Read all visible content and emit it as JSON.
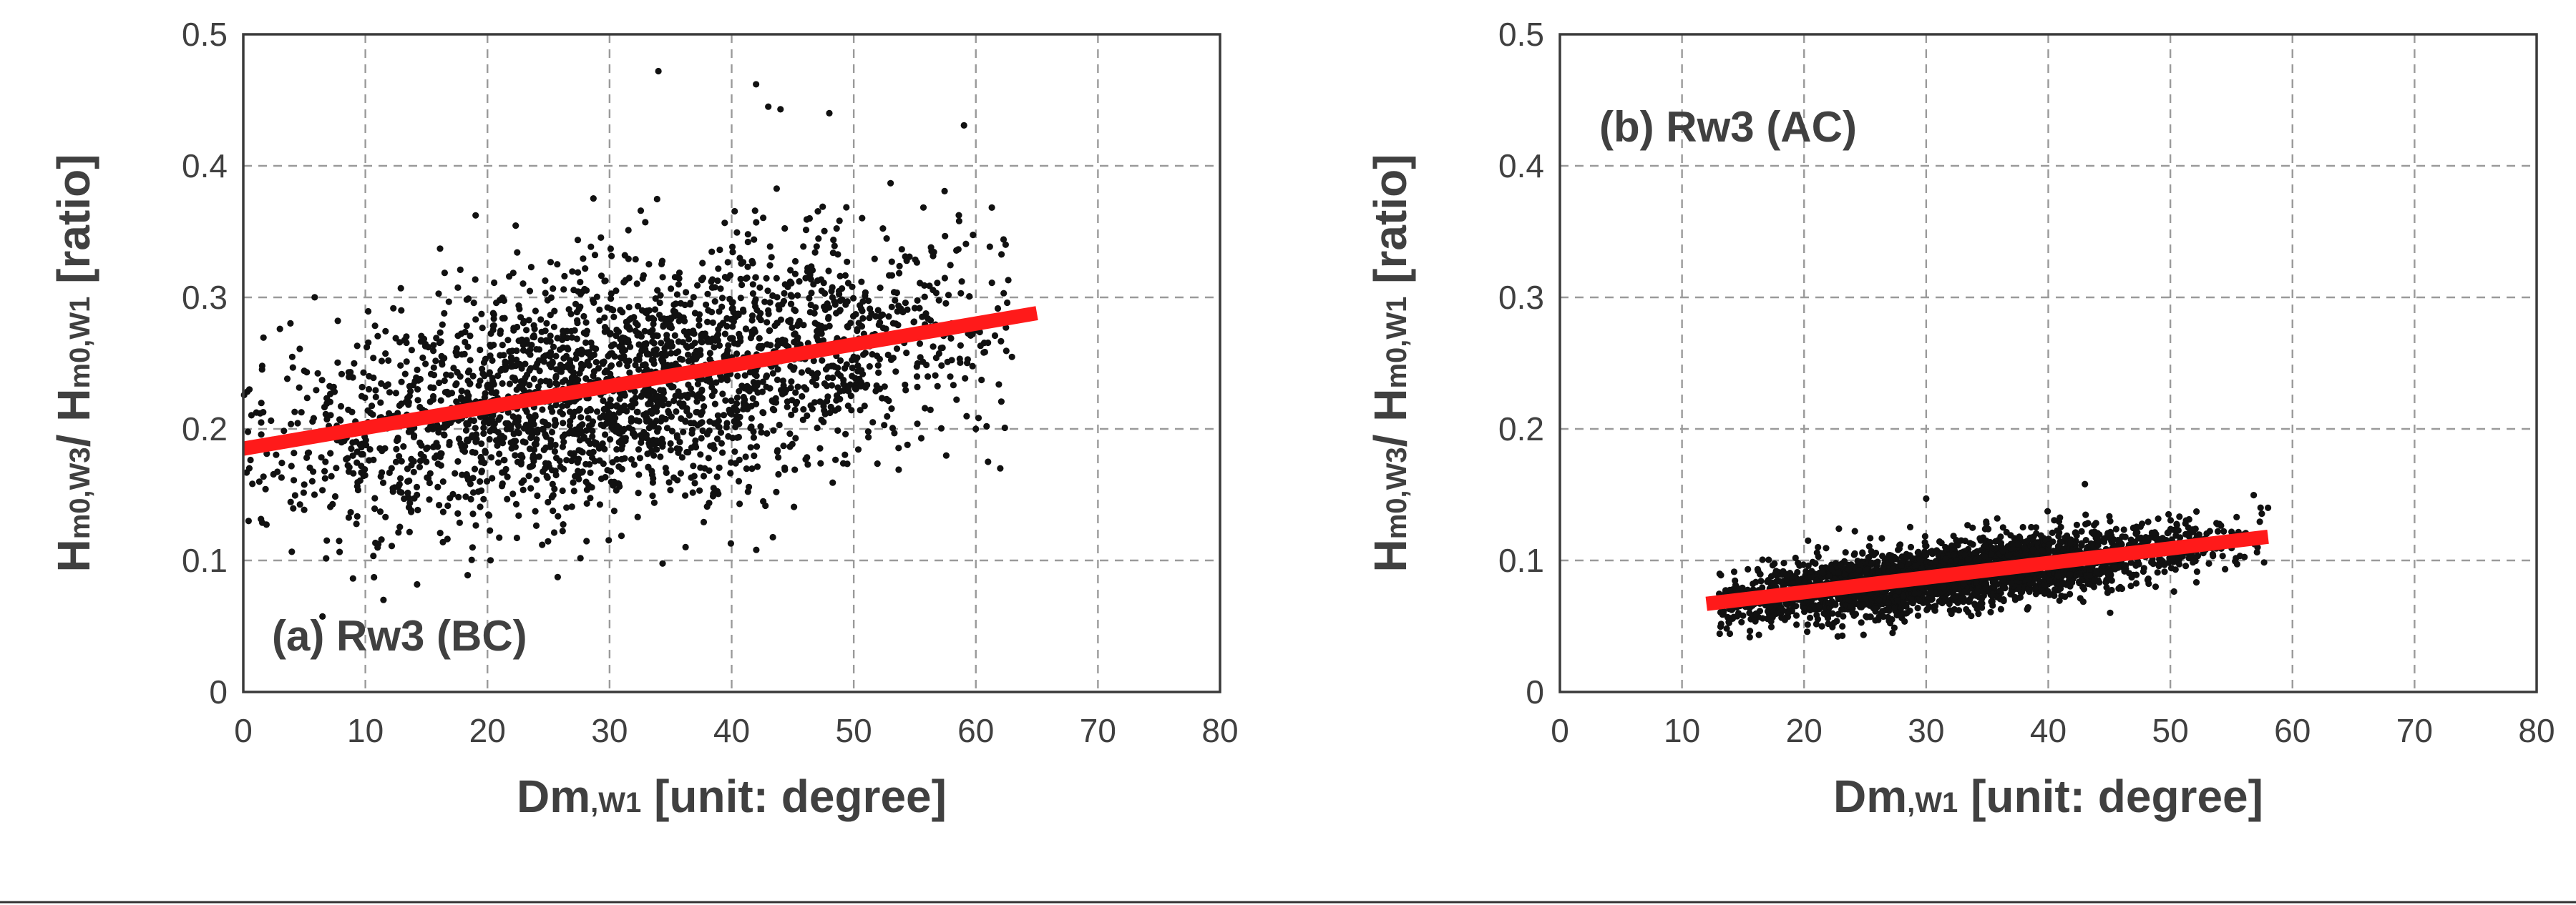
{
  "chart_data": [
    {
      "type": "scatter",
      "panel": "a",
      "annotation": "(a) Rw3 (BC)",
      "xlabel": {
        "main": "Dm",
        "sub": ",W1",
        "rest": " [unit: degree]"
      },
      "ylabel": {
        "p1": "H",
        "s1": "m0,W3",
        "p2": "/ H",
        "s2": "m0,W1",
        "p3": " [ratio]"
      },
      "xlim": [
        0,
        80
      ],
      "ylim": [
        0,
        0.5
      ],
      "xticks": [
        0,
        10,
        20,
        30,
        40,
        50,
        60,
        70,
        80
      ],
      "yticks": [
        0,
        0.1,
        0.2,
        0.3,
        0.4,
        0.5
      ],
      "ytick_labels": [
        "0",
        "0.1",
        "0.2",
        "0.3",
        "0.4",
        "0.5"
      ],
      "grid": true,
      "trend_line": {
        "x": [
          0,
          65
        ],
        "y": [
          0.185,
          0.288
        ]
      },
      "cloud": {
        "x_range": [
          0,
          63
        ],
        "x_center": 32,
        "y_center": 0.23,
        "y_spread": 0.045,
        "n": 2600
      },
      "outliers": [
        [
          34,
          0.472
        ],
        [
          42,
          0.462
        ],
        [
          43,
          0.445
        ],
        [
          44,
          0.443
        ],
        [
          48,
          0.44
        ],
        [
          0.5,
          0.23
        ],
        [
          3,
          0.276
        ],
        [
          61,
          0.175
        ],
        [
          62,
          0.17
        ],
        [
          60,
          0.2
        ]
      ]
    },
    {
      "type": "scatter",
      "panel": "b",
      "annotation": "(b) Rw3 (AC)",
      "xlabel": {
        "main": "Dm",
        "sub": ",W1",
        "rest": " [unit: degree]"
      },
      "ylabel": {
        "p1": "H",
        "s1": "m0,W3",
        "p2": "/ H",
        "s2": "m0,W1",
        "p3": " [ratio]"
      },
      "xlim": [
        0,
        80
      ],
      "ylim": [
        0,
        0.5
      ],
      "xticks": [
        0,
        10,
        20,
        30,
        40,
        50,
        60,
        70,
        80
      ],
      "yticks": [
        0,
        0.1,
        0.2,
        0.3,
        0.4,
        0.5
      ],
      "ytick_labels": [
        "0",
        "0.1",
        "0.2",
        "0.3",
        "0.4",
        "0.5"
      ],
      "grid": true,
      "trend_line": {
        "x": [
          12,
          58
        ],
        "y": [
          0.067,
          0.118
        ]
      },
      "cloud": {
        "x_range": [
          13,
          58
        ],
        "x_center": 32,
        "y_center": 0.09,
        "y_spread": 0.012,
        "n": 3000
      },
      "outliers": [
        [
          43,
          0.158
        ],
        [
          30,
          0.147
        ],
        [
          58,
          0.14
        ],
        [
          15,
          0.058
        ]
      ]
    }
  ]
}
